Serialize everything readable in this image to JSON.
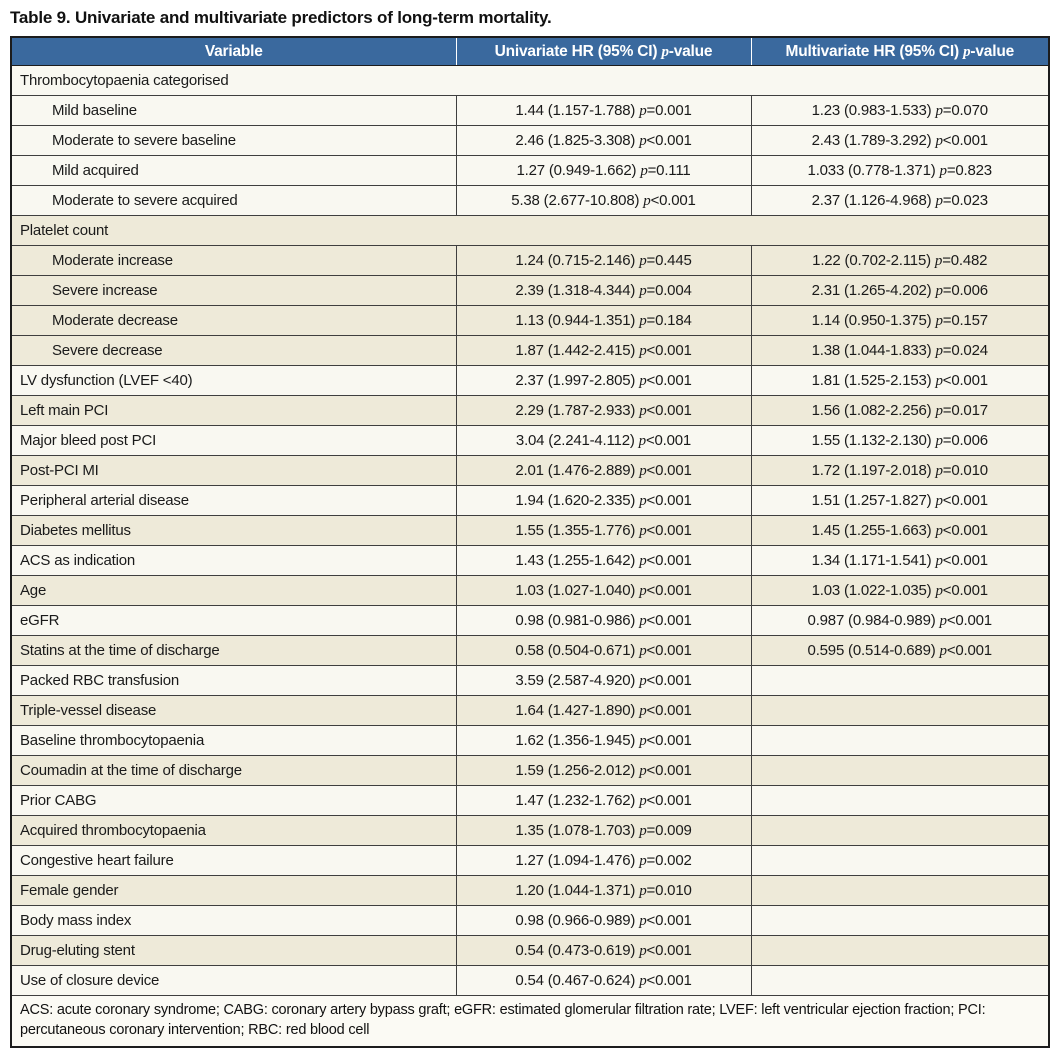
{
  "title": "Table 9. Univariate and multivariate predictors of long-term mortality.",
  "p_symbol": "p",
  "colors": {
    "header_bg": "#3a699e",
    "header_text": "#ffffff",
    "row_white": "#f9f8f1",
    "row_cream": "#eeead9",
    "border": "#1c1c1c"
  },
  "columns": [
    {
      "label": "Variable"
    },
    {
      "prefix": "Univariate HR (95% CI) ",
      "p": "p",
      "suffix": "-value"
    },
    {
      "prefix": "Multivariate HR (95% CI) ",
      "p": "p",
      "suffix": "-value"
    }
  ],
  "rows": [
    {
      "type": "section",
      "shade": "white",
      "label": "Thrombocytopaenia categorised"
    },
    {
      "type": "data",
      "shade": "white",
      "indent": true,
      "label": "Mild baseline",
      "uni": {
        "hr": "1.44 (1.157-1.788)",
        "rel": "=0.001"
      },
      "multi": {
        "hr": "1.23 (0.983-1.533)",
        "rel": "=0.070"
      }
    },
    {
      "type": "data",
      "shade": "white",
      "indent": true,
      "label": "Moderate to severe baseline",
      "uni": {
        "hr": "2.46 (1.825-3.308)",
        "rel": "<0.001"
      },
      "multi": {
        "hr": "2.43 (1.789-3.292)",
        "rel": "<0.001"
      }
    },
    {
      "type": "data",
      "shade": "white",
      "indent": true,
      "label": "Mild acquired",
      "uni": {
        "hr": "1.27 (0.949-1.662)",
        "rel": "=0.111"
      },
      "multi": {
        "hr": "1.033 (0.778-1.371)",
        "rel": "=0.823"
      }
    },
    {
      "type": "data",
      "shade": "white",
      "indent": true,
      "label": "Moderate to severe acquired",
      "uni": {
        "hr": "5.38 (2.677-10.808)",
        "rel": "<0.001"
      },
      "multi": {
        "hr": "2.37 (1.126-4.968)",
        "rel": "=0.023"
      }
    },
    {
      "type": "section",
      "shade": "cream",
      "label": "Platelet count"
    },
    {
      "type": "data",
      "shade": "cream",
      "indent": true,
      "label": "Moderate increase",
      "uni": {
        "hr": "1.24 (0.715-2.146)",
        "rel": "=0.445"
      },
      "multi": {
        "hr": "1.22 (0.702-2.115)",
        "rel": "=0.482"
      }
    },
    {
      "type": "data",
      "shade": "cream",
      "indent": true,
      "label": "Severe increase",
      "uni": {
        "hr": "2.39 (1.318-4.344)",
        "rel": "=0.004"
      },
      "multi": {
        "hr": "2.31 (1.265-4.202)",
        "rel": "=0.006"
      }
    },
    {
      "type": "data",
      "shade": "cream",
      "indent": true,
      "label": "Moderate decrease",
      "uni": {
        "hr": "1.13 (0.944-1.351)",
        "rel": "=0.184"
      },
      "multi": {
        "hr": "1.14 (0.950-1.375)",
        "rel": "=0.157"
      }
    },
    {
      "type": "data",
      "shade": "cream",
      "indent": true,
      "label": "Severe decrease",
      "uni": {
        "hr": "1.87 (1.442-2.415)",
        "rel": "<0.001"
      },
      "multi": {
        "hr": "1.38 (1.044-1.833)",
        "rel": "=0.024"
      }
    },
    {
      "type": "data",
      "shade": "white",
      "indent": false,
      "label": "LV dysfunction (LVEF <40)",
      "uni": {
        "hr": "2.37 (1.997-2.805)",
        "rel": "<0.001"
      },
      "multi": {
        "hr": "1.81 (1.525-2.153)",
        "rel": "<0.001"
      }
    },
    {
      "type": "data",
      "shade": "cream",
      "indent": false,
      "label": "Left main PCI",
      "uni": {
        "hr": "2.29 (1.787-2.933)",
        "rel": "<0.001"
      },
      "multi": {
        "hr": "1.56 (1.082-2.256)",
        "rel": "=0.017"
      }
    },
    {
      "type": "data",
      "shade": "white",
      "indent": false,
      "label": "Major bleed post PCI",
      "uni": {
        "hr": "3.04 (2.241-4.112)",
        "rel": "<0.001"
      },
      "multi": {
        "hr": "1.55 (1.132-2.130)",
        "rel": "=0.006"
      }
    },
    {
      "type": "data",
      "shade": "cream",
      "indent": false,
      "label": "Post-PCI MI",
      "uni": {
        "hr": "2.01 (1.476-2.889)",
        "rel": "<0.001"
      },
      "multi": {
        "hr": "1.72 (1.197-2.018)",
        "rel": "=0.010"
      }
    },
    {
      "type": "data",
      "shade": "white",
      "indent": false,
      "label": "Peripheral arterial disease",
      "uni": {
        "hr": "1.94 (1.620-2.335)",
        "rel": "<0.001"
      },
      "multi": {
        "hr": "1.51 (1.257-1.827)",
        "rel": "<0.001"
      }
    },
    {
      "type": "data",
      "shade": "cream",
      "indent": false,
      "label": "Diabetes mellitus",
      "uni": {
        "hr": "1.55 (1.355-1.776)",
        "rel": "<0.001"
      },
      "multi": {
        "hr": "1.45 (1.255-1.663)",
        "rel": "<0.001"
      }
    },
    {
      "type": "data",
      "shade": "white",
      "indent": false,
      "label": "ACS as indication",
      "uni": {
        "hr": "1.43 (1.255-1.642)",
        "rel": "<0.001"
      },
      "multi": {
        "hr": "1.34 (1.171-1.541)",
        "rel": "<0.001"
      }
    },
    {
      "type": "data",
      "shade": "cream",
      "indent": false,
      "label": "Age",
      "uni": {
        "hr": "1.03 (1.027-1.040)",
        "rel": "<0.001"
      },
      "multi": {
        "hr": "1.03 (1.022-1.035)",
        "rel": "<0.001"
      }
    },
    {
      "type": "data",
      "shade": "white",
      "indent": false,
      "label": "eGFR",
      "uni": {
        "hr": "0.98 (0.981-0.986)",
        "rel": "<0.001"
      },
      "multi": {
        "hr": "0.987 (0.984-0.989)",
        "rel": "<0.001"
      }
    },
    {
      "type": "data",
      "shade": "cream",
      "indent": false,
      "label": "Statins at the time of discharge",
      "uni": {
        "hr": "0.58 (0.504-0.671)",
        "rel": "<0.001"
      },
      "multi": {
        "hr": "0.595 (0.514-0.689)",
        "rel": "<0.001"
      }
    },
    {
      "type": "data",
      "shade": "white",
      "indent": false,
      "label": "Packed RBC transfusion",
      "uni": {
        "hr": "3.59 (2.587-4.920)",
        "rel": "<0.001"
      },
      "multi": null
    },
    {
      "type": "data",
      "shade": "cream",
      "indent": false,
      "label": "Triple-vessel disease",
      "uni": {
        "hr": "1.64 (1.427-1.890)",
        "rel": "<0.001"
      },
      "multi": null
    },
    {
      "type": "data",
      "shade": "white",
      "indent": false,
      "label": "Baseline thrombocytopaenia",
      "uni": {
        "hr": "1.62 (1.356-1.945)",
        "rel": "<0.001"
      },
      "multi": null
    },
    {
      "type": "data",
      "shade": "cream",
      "indent": false,
      "label": "Coumadin at the time of discharge",
      "uni": {
        "hr": "1.59 (1.256-2.012)",
        "rel": "<0.001"
      },
      "multi": null
    },
    {
      "type": "data",
      "shade": "white",
      "indent": false,
      "label": "Prior CABG",
      "uni": {
        "hr": "1.47 (1.232-1.762)",
        "rel": "<0.001"
      },
      "multi": null
    },
    {
      "type": "data",
      "shade": "cream",
      "indent": false,
      "label": "Acquired thrombocytopaenia",
      "uni": {
        "hr": "1.35 (1.078-1.703)",
        "rel": "=0.009"
      },
      "multi": null
    },
    {
      "type": "data",
      "shade": "white",
      "indent": false,
      "label": "Congestive heart failure",
      "uni": {
        "hr": "1.27 (1.094-1.476)",
        "rel": "=0.002"
      },
      "multi": null
    },
    {
      "type": "data",
      "shade": "cream",
      "indent": false,
      "label": "Female gender",
      "uni": {
        "hr": "1.20 (1.044-1.371)",
        "rel": "=0.010"
      },
      "multi": null
    },
    {
      "type": "data",
      "shade": "white",
      "indent": false,
      "label": "Body mass index",
      "uni": {
        "hr": "0.98 (0.966-0.989)",
        "rel": "<0.001"
      },
      "multi": null
    },
    {
      "type": "data",
      "shade": "cream",
      "indent": false,
      "label": "Drug-eluting stent",
      "uni": {
        "hr": "0.54 (0.473-0.619)",
        "rel": "<0.001"
      },
      "multi": null
    },
    {
      "type": "data",
      "shade": "white",
      "indent": false,
      "label": "Use of closure device",
      "uni": {
        "hr": "0.54 (0.467-0.624)",
        "rel": "<0.001"
      },
      "multi": null
    }
  ],
  "footnote": "ACS: acute coronary syndrome; CABG: coronary artery bypass graft; eGFR: estimated glomerular filtration rate; LVEF: left ventricular ejection fraction; PCI: percutaneous coronary intervention; RBC: red blood cell"
}
